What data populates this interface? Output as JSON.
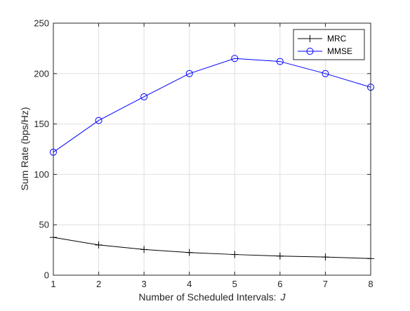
{
  "chart_data": {
    "type": "line",
    "title": "",
    "xlabel": "Number of Scheduled Intervals:",
    "xlabel_symbol": "J",
    "ylabel": "Sum Rate (bps/Hz)",
    "x": [
      1,
      2,
      3,
      4,
      5,
      6,
      7,
      8
    ],
    "xlim": [
      1,
      8
    ],
    "ylim": [
      0,
      250
    ],
    "xticks": [
      "1",
      "2",
      "3",
      "4",
      "5",
      "6",
      "7",
      "8"
    ],
    "yticks": [
      "0",
      "50",
      "100",
      "150",
      "200",
      "250"
    ],
    "grid": true,
    "legend_position": "top-right",
    "series": [
      {
        "name": "MRC",
        "marker": "plus",
        "color": "#000000",
        "values": [
          37.5,
          30,
          25.5,
          22.5,
          20.5,
          19,
          18,
          16.5
        ]
      },
      {
        "name": "MMSE",
        "marker": "circle",
        "color": "#0000ff",
        "values": [
          122,
          153.5,
          177,
          200,
          215,
          212,
          200,
          186.5
        ]
      }
    ]
  }
}
